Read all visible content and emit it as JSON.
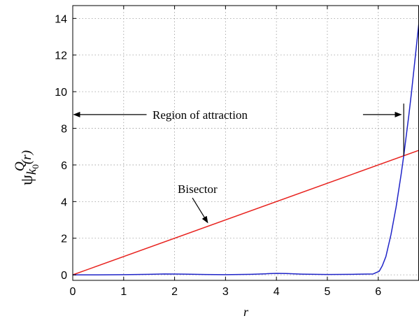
{
  "chart_data": {
    "type": "line",
    "xlabel": "r",
    "ylabel": {
      "base": "ψ",
      "superscript": "Q",
      "subscript_k": "k",
      "subscript_0": "0",
      "argument": "(r)"
    },
    "xlim": [
      0,
      6.8
    ],
    "ylim": [
      -0.3,
      14.7
    ],
    "x_ticks": [
      0,
      1,
      2,
      3,
      4,
      5,
      6
    ],
    "y_ticks": [
      0,
      2,
      4,
      6,
      8,
      10,
      12,
      14
    ],
    "grid": true,
    "series": [
      {
        "name": "Bisector",
        "color": "#e8231f",
        "x": [
          0,
          6.8
        ],
        "y": [
          0,
          6.8
        ]
      },
      {
        "color": "#1f24c8",
        "x": [
          0,
          0.5,
          1.0,
          1.5,
          1.8,
          2.2,
          2.6,
          3.0,
          3.5,
          3.8,
          4.0,
          4.2,
          4.5,
          5.0,
          5.5,
          5.9,
          6.02,
          6.08,
          6.15,
          6.25,
          6.35,
          6.45,
          6.5,
          6.55,
          6.6,
          6.65,
          6.7,
          6.75,
          6.8
        ],
        "y": [
          0.0,
          0.0,
          0.01,
          0.03,
          0.05,
          0.04,
          0.02,
          0.01,
          0.03,
          0.06,
          0.08,
          0.07,
          0.04,
          0.02,
          0.03,
          0.05,
          0.2,
          0.5,
          1.0,
          2.2,
          3.7,
          5.5,
          6.5,
          7.6,
          8.7,
          9.9,
          11.2,
          12.5,
          13.8
        ]
      }
    ],
    "annotations": [
      {
        "id": "region",
        "text": "Region of attraction",
        "x": 2.5,
        "y": 8.75
      },
      {
        "id": "bisector",
        "text": "Bisector",
        "x": 2.45,
        "y": 4.7
      }
    ],
    "markers": {
      "left_arrow": {
        "x_from": 1.45,
        "x_to": 0.02,
        "y": 8.75
      },
      "right_arrow": {
        "x_from": 5.7,
        "x_to": 6.45,
        "y": 8.75
      },
      "threshold_line": {
        "x": 6.5,
        "y_from": 6.5,
        "y_to": 9.35
      },
      "bisector_arrow": {
        "x_from": 2.35,
        "y_from": 4.2,
        "x_to": 2.65,
        "y_to": 2.85
      }
    }
  }
}
